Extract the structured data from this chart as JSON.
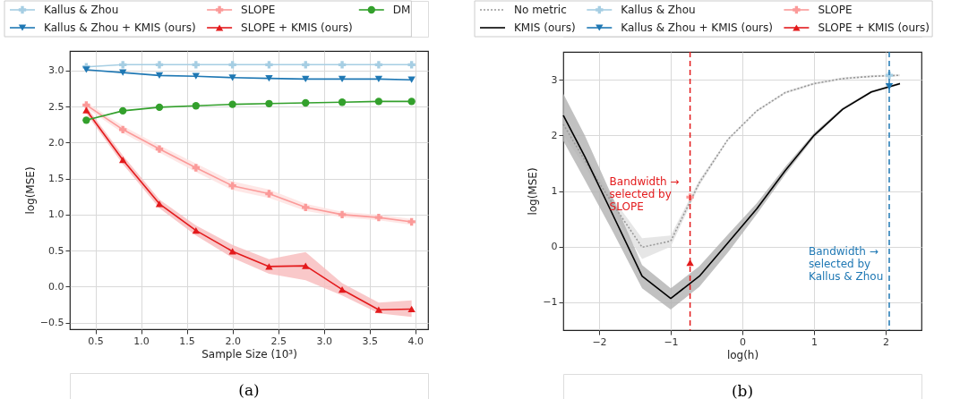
{
  "chart_data": [
    {
      "type": "line",
      "xlabel": "Sample Size (10³)",
      "ylabel": "log(MSE)",
      "annotations": [
        "(a)"
      ],
      "legend": "top",
      "grid": true,
      "x": [
        0.4,
        0.8,
        1.2,
        1.6,
        2.0,
        2.4,
        2.8,
        3.2,
        3.6,
        3.96
      ],
      "xlim": [
        0.22,
        4.14
      ],
      "xticks": [
        0.5,
        {
          "value": 1,
          "label": "1.0"
        },
        1.5,
        {
          "value": 2,
          "label": "2.0"
        },
        2.5,
        {
          "value": 3,
          "label": "3.0"
        },
        3.5,
        {
          "value": 4,
          "label": "4.0"
        }
      ],
      "ylim": [
        -0.59,
        3.27
      ],
      "yticks": [
        {
          "value": -0.5,
          "label": "−0.5"
        },
        {
          "value": 0,
          "label": "0.0"
        },
        0.5,
        {
          "value": 1,
          "label": "1.0"
        },
        1.5,
        {
          "value": 2,
          "label": "2.0"
        },
        2.5,
        {
          "value": 3,
          "label": "3.0"
        }
      ],
      "series": [
        {
          "name": "Kallus & Zhou",
          "color": "#a6cee3",
          "marker": "cross",
          "line_style": "solid",
          "values": [
            3.05,
            3.08,
            3.08,
            3.08,
            3.08,
            3.08,
            3.08,
            3.08,
            3.08,
            3.08
          ]
        },
        {
          "name": "Kallus & Zhou + KMIS (ours)",
          "color": "#1f78b4",
          "marker": "triangle-down",
          "line_style": "solid",
          "values": [
            3.01,
            2.97,
            2.93,
            2.92,
            2.9,
            2.89,
            2.88,
            2.88,
            2.88,
            2.87
          ]
        },
        {
          "name": "SLOPE",
          "color": "#fb9a99",
          "marker": "cross",
          "line_style": "solid",
          "values": [
            2.52,
            2.18,
            1.91,
            1.65,
            1.4,
            1.29,
            1.1,
            1.0,
            0.96,
            0.9
          ],
          "lower": [
            2.48,
            2.13,
            1.86,
            1.59,
            1.34,
            1.23,
            1.05,
            0.96,
            0.92,
            0.86
          ],
          "upper": [
            2.56,
            2.23,
            1.96,
            1.71,
            1.46,
            1.35,
            1.15,
            1.04,
            1.0,
            0.94
          ]
        },
        {
          "name": "SLOPE + KMIS (ours)",
          "color": "#e31a1c",
          "marker": "triangle",
          "line_style": "solid",
          "values": [
            2.45,
            1.76,
            1.15,
            0.78,
            0.49,
            0.28,
            0.29,
            -0.04,
            -0.32,
            -0.31
          ],
          "lower": [
            2.4,
            1.7,
            1.09,
            0.71,
            0.4,
            0.18,
            0.09,
            -0.12,
            -0.37,
            -0.42
          ],
          "upper": [
            2.5,
            1.82,
            1.21,
            0.85,
            0.58,
            0.38,
            0.48,
            0.05,
            -0.22,
            -0.19
          ]
        },
        {
          "name": "DM",
          "color": "#33a02c",
          "marker": "circle",
          "line_style": "solid",
          "values": [
            2.31,
            2.44,
            2.49,
            2.51,
            2.53,
            2.54,
            2.55,
            2.56,
            2.57,
            2.57
          ]
        }
      ]
    },
    {
      "type": "line",
      "xlabel": "log(h)",
      "ylabel": "log(MSE)",
      "annotations": [
        "(b)"
      ],
      "legend": "top",
      "grid": true,
      "xlim": [
        -2.5,
        2.5
      ],
      "xticks": [
        {
          "value": -2,
          "label": "−2"
        },
        {
          "value": -1,
          "label": "−1"
        },
        {
          "value": 0,
          "label": "0"
        },
        {
          "value": 1,
          "label": "1"
        },
        {
          "value": 2,
          "label": "2"
        }
      ],
      "ylim": [
        -1.5,
        3.5
      ],
      "yticks": [
        {
          "value": -1,
          "label": "−1"
        },
        {
          "value": 0,
          "label": "0"
        },
        {
          "value": 1,
          "label": "1"
        },
        {
          "value": 2,
          "label": "2"
        },
        {
          "value": 3,
          "label": "3"
        }
      ],
      "series": [
        {
          "name": "No metric",
          "color": "#999999",
          "marker": "none",
          "line_style": "dotted",
          "x": [
            -2.5,
            -2.2,
            -1.8,
            -1.4,
            -1.0,
            -0.6,
            -0.2,
            0.2,
            0.6,
            1.0,
            1.4,
            1.8,
            2.2
          ],
          "values": [
            2.2,
            1.55,
            0.75,
            -0.01,
            0.1,
            1.15,
            1.93,
            2.44,
            2.77,
            2.93,
            3.02,
            3.06,
            3.08
          ],
          "lower": [
            2.0,
            1.45,
            0.6,
            -0.22,
            0.0,
            1.1,
            1.91,
            2.42,
            2.75,
            2.91,
            3.0,
            3.04,
            3.06
          ],
          "upper": [
            2.4,
            1.65,
            0.85,
            0.15,
            0.2,
            1.2,
            1.95,
            2.46,
            2.79,
            2.95,
            3.04,
            3.08,
            3.1
          ]
        },
        {
          "name": "KMIS (ours)",
          "color": "#000000",
          "marker": "none",
          "line_style": "solid",
          "x": [
            -2.5,
            -2.2,
            -1.8,
            -1.4,
            -1.0,
            -0.6,
            -0.2,
            0.2,
            0.6,
            1.0,
            1.4,
            1.8,
            2.2
          ],
          "values": [
            2.36,
            1.62,
            0.55,
            -0.53,
            -0.93,
            -0.53,
            0.07,
            0.68,
            1.37,
            2.0,
            2.47,
            2.78,
            2.93
          ],
          "lower": [
            1.9,
            1.2,
            0.25,
            -0.75,
            -1.13,
            -0.72,
            -0.1,
            0.58,
            1.3,
            1.96,
            2.45,
            2.76,
            2.91
          ],
          "upper": [
            2.75,
            2.0,
            0.85,
            -0.33,
            -0.75,
            -0.35,
            0.22,
            0.78,
            1.44,
            2.04,
            2.5,
            2.8,
            2.95
          ]
        },
        {
          "type": "scatter",
          "name": "Kallus & Zhou",
          "color": "#a6cee3",
          "marker": "cross",
          "x": [
            2.05
          ],
          "values": [
            3.08
          ]
        },
        {
          "type": "scatter",
          "name": "Kallus & Zhou + KMIS (ours)",
          "color": "#1f78b4",
          "marker": "triangle-down",
          "x": [
            2.05
          ],
          "values": [
            2.88
          ]
        },
        {
          "type": "scatter",
          "name": "SLOPE",
          "color": "#fb9a99",
          "marker": "cross",
          "x": [
            -0.73
          ],
          "values": [
            0.89
          ]
        },
        {
          "type": "scatter",
          "name": "SLOPE + KMIS (ours)",
          "color": "#e31a1c",
          "marker": "triangle",
          "x": [
            -0.73
          ],
          "values": [
            -0.29
          ]
        }
      ],
      "ref_lines": [
        {
          "axis": "x",
          "value": -0.73,
          "label": "Bandwidth →\nselected by\nSLOPE",
          "color": "#e31a1c",
          "line_style": "dashed"
        },
        {
          "axis": "x",
          "value": 2.05,
          "label": "Bandwidth →\nselected by\nKallus & Zhou",
          "color": "#1f78b4",
          "line_style": "dashed"
        }
      ]
    }
  ]
}
